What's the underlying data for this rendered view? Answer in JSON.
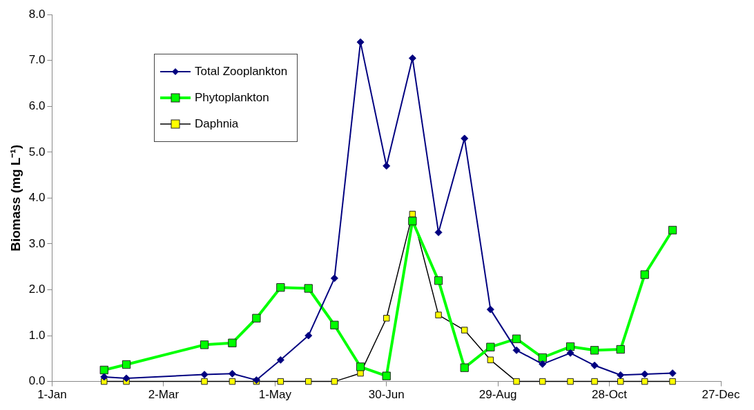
{
  "chart_data": {
    "type": "line",
    "ylabel": "Biomass (mg L⁻¹)",
    "x": [
      "--01-29",
      "--02-10",
      "--03-24",
      "--04-08",
      "--04-21",
      "--05-04",
      "--05-19",
      "--06-02",
      "--06-16",
      "--06-30",
      "--07-14",
      "--07-28",
      "--08-11",
      "--08-25",
      "--09-08",
      "--09-22",
      "--10-07",
      "--10-20",
      "--11-03",
      "--11-16",
      "--12-01"
    ],
    "series": [
      {
        "name": "Total Zooplankton",
        "color": "#000080",
        "marker": "diamond",
        "values": [
          0.1,
          0.07,
          0.15,
          0.17,
          0.03,
          0.47,
          1.0,
          2.25,
          7.4,
          4.7,
          7.05,
          3.25,
          5.3,
          1.57,
          0.68,
          0.38,
          0.62,
          0.35,
          0.14,
          0.16,
          0.18
        ]
      },
      {
        "name": "Phytoplankton",
        "color": "#00ff00",
        "marker": "square",
        "values": [
          0.25,
          0.37,
          0.8,
          0.84,
          1.38,
          2.05,
          2.03,
          1.23,
          0.32,
          0.12,
          3.5,
          2.2,
          0.3,
          0.75,
          0.93,
          0.52,
          0.76,
          0.68,
          0.7,
          2.33,
          3.3
        ]
      },
      {
        "name": "Daphnia",
        "color": "#000000",
        "marker": "square",
        "values": [
          0,
          0,
          0,
          0,
          0,
          0,
          0,
          0,
          0.18,
          1.38,
          3.65,
          1.45,
          1.12,
          0.47,
          0,
          0,
          0,
          0,
          0,
          0,
          0
        ]
      }
    ],
    "xlim": [
      "--01-01",
      "--12-27"
    ],
    "xticks": [
      {
        "value": "--01-01",
        "label": "1-Jan"
      },
      {
        "value": "--03-02",
        "label": "2-Mar"
      },
      {
        "value": "--05-01",
        "label": "1-May"
      },
      {
        "value": "--06-30",
        "label": "30-Jun"
      },
      {
        "value": "--08-29",
        "label": "29-Aug"
      },
      {
        "value": "--10-28",
        "label": "28-Oct"
      },
      {
        "value": "--12-27",
        "label": "27-Dec"
      }
    ],
    "ylim": [
      0,
      8
    ],
    "yticks": [
      {
        "value": 0,
        "label": "0.0"
      },
      {
        "value": 1,
        "label": "1.0"
      },
      {
        "value": 2,
        "label": "2.0"
      },
      {
        "value": 3,
        "label": "3.0"
      },
      {
        "value": 4,
        "label": "4.0"
      },
      {
        "value": 5,
        "label": "5.0"
      },
      {
        "value": 6,
        "label": "6.0"
      },
      {
        "value": 7,
        "label": "7.0"
      },
      {
        "value": 8,
        "label": "8.0"
      }
    ],
    "grid": false,
    "legend": "top left"
  }
}
